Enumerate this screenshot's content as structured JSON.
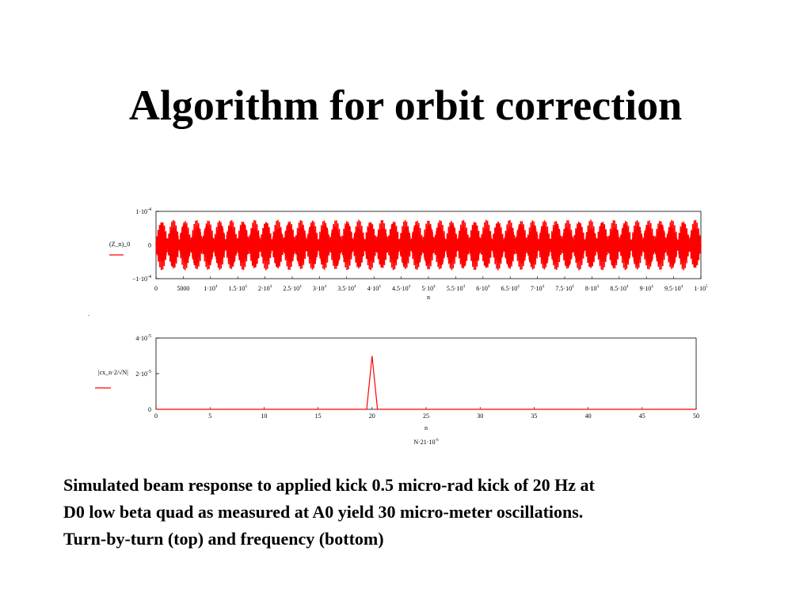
{
  "slide": {
    "title": "Algorithm for orbit correction",
    "caption_lines": [
      "Simulated beam response to applied kick 0.5 micro-rad kick of 20 Hz at",
      "D0 low beta quad as measured at A0 yield 30 micro-meter oscillations.",
      "Turn-by-turn (top) and frequency (bottom)"
    ],
    "stray_mark": "."
  },
  "colors": {
    "series": "#ff0000",
    "axis": "#000000"
  },
  "chart_data": [
    {
      "type": "line",
      "description_role": "turn-by-turn",
      "ylabel": "(Z_n)_0",
      "xlabel": "n",
      "xlim": [
        0,
        100000
      ],
      "ylim": [
        -0.0001,
        0.0001
      ],
      "y_ticks": [
        {
          "value": 0.0001,
          "label": "1·10^-4"
        },
        {
          "value": 0,
          "label": "0"
        },
        {
          "value": -0.0001,
          "label": "−1·10^-4"
        }
      ],
      "x_ticks": [
        {
          "value": 0,
          "label": "0"
        },
        {
          "value": 5000,
          "label": "5000"
        },
        {
          "value": 10000,
          "label": "1·10^4"
        },
        {
          "value": 15000,
          "label": "1.5·10^4"
        },
        {
          "value": 20000,
          "label": "2·10^4"
        },
        {
          "value": 25000,
          "label": "2.5·10^4"
        },
        {
          "value": 30000,
          "label": "3·10^4"
        },
        {
          "value": 35000,
          "label": "3.5·10^4"
        },
        {
          "value": 40000,
          "label": "4·10^4"
        },
        {
          "value": 45000,
          "label": "4.5·10^4"
        },
        {
          "value": 50000,
          "label": "5·10^4"
        },
        {
          "value": 55000,
          "label": "5.5·10^4"
        },
        {
          "value": 60000,
          "label": "6·10^4"
        },
        {
          "value": 65000,
          "label": "6.5·10^4"
        },
        {
          "value": 70000,
          "label": "7·10^4"
        },
        {
          "value": 75000,
          "label": "7.5·10^4"
        },
        {
          "value": 80000,
          "label": "8·10^4"
        },
        {
          "value": 85000,
          "label": "8.5·10^4"
        },
        {
          "value": 90000,
          "label": "9·10^4"
        },
        {
          "value": 95000,
          "label": "9.5·10^4"
        },
        {
          "value": 100000,
          "label": "1·10^5"
        }
      ],
      "signal": {
        "beat_count": 47,
        "peak_amplitude": 7.5e-05,
        "trough_amplitude": 1.5e-05,
        "carrier_count": 260
      }
    },
    {
      "type": "line",
      "description_role": "frequency",
      "ylabel": "|cx_n·2/√N|",
      "xlabel": "n",
      "footer_label": "N·21·10^-6",
      "xlim": [
        0,
        50
      ],
      "ylim": [
        0,
        4e-05
      ],
      "y_ticks": [
        {
          "value": 4e-05,
          "label": "4·10^-5"
        },
        {
          "value": 2e-05,
          "label": "2·10^-5"
        },
        {
          "value": 0,
          "label": "0"
        }
      ],
      "x_ticks": [
        {
          "value": 0,
          "label": "0"
        },
        {
          "value": 5,
          "label": "5"
        },
        {
          "value": 10,
          "label": "10"
        },
        {
          "value": 15,
          "label": "15"
        },
        {
          "value": 20,
          "label": "20"
        },
        {
          "value": 25,
          "label": "25"
        },
        {
          "value": 30,
          "label": "30"
        },
        {
          "value": 35,
          "label": "35"
        },
        {
          "value": 40,
          "label": "40"
        },
        {
          "value": 45,
          "label": "45"
        },
        {
          "value": 50,
          "label": "50"
        }
      ],
      "x": [
        0,
        19.5,
        20,
        20.5,
        50
      ],
      "y": [
        0,
        0,
        3e-05,
        0,
        0
      ]
    }
  ]
}
